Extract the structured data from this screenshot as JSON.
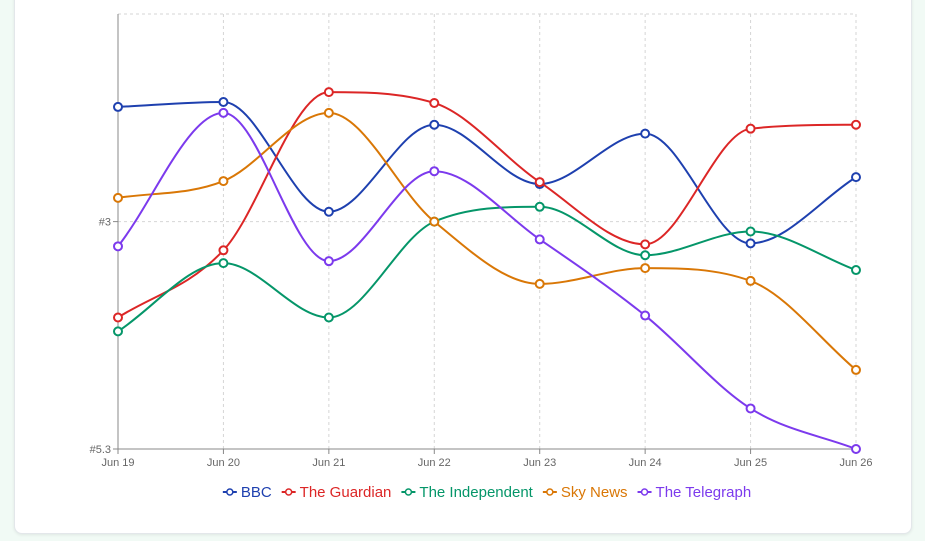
{
  "chart_data": {
    "type": "line",
    "categories": [
      "Jun 19",
      "Jun 20",
      "Jun 21",
      "Jun 22",
      "Jun 23",
      "Jun 24",
      "Jun 25",
      "Jun 26"
    ],
    "y_ticks": [
      {
        "label": "#3",
        "value": 3
      },
      {
        "label": "#5.3",
        "value": 5.3
      }
    ],
    "y_axis_reversed": true,
    "ylim": [
      0.9,
      5.3
    ],
    "grid": true,
    "legend_position": "bottom",
    "series": [
      {
        "name": "BBC",
        "color": "#1e40af",
        "values": [
          1.84,
          1.79,
          2.9,
          2.02,
          2.62,
          2.11,
          3.22,
          2.55
        ]
      },
      {
        "name": "The Guardian",
        "color": "#dc2626",
        "values": [
          3.97,
          3.29,
          1.69,
          1.8,
          2.6,
          3.23,
          2.06,
          2.02
        ]
      },
      {
        "name": "The Independent",
        "color": "#059669",
        "values": [
          4.11,
          3.42,
          3.97,
          3.0,
          2.85,
          3.34,
          3.1,
          3.49
        ]
      },
      {
        "name": "Sky News",
        "color": "#d97706",
        "values": [
          2.76,
          2.59,
          1.9,
          3.0,
          3.63,
          3.47,
          3.6,
          4.5
        ]
      },
      {
        "name": "The Telegraph",
        "color": "#7c3aed",
        "values": [
          3.25,
          1.9,
          3.4,
          2.49,
          3.18,
          3.95,
          4.89,
          5.3
        ]
      }
    ]
  }
}
